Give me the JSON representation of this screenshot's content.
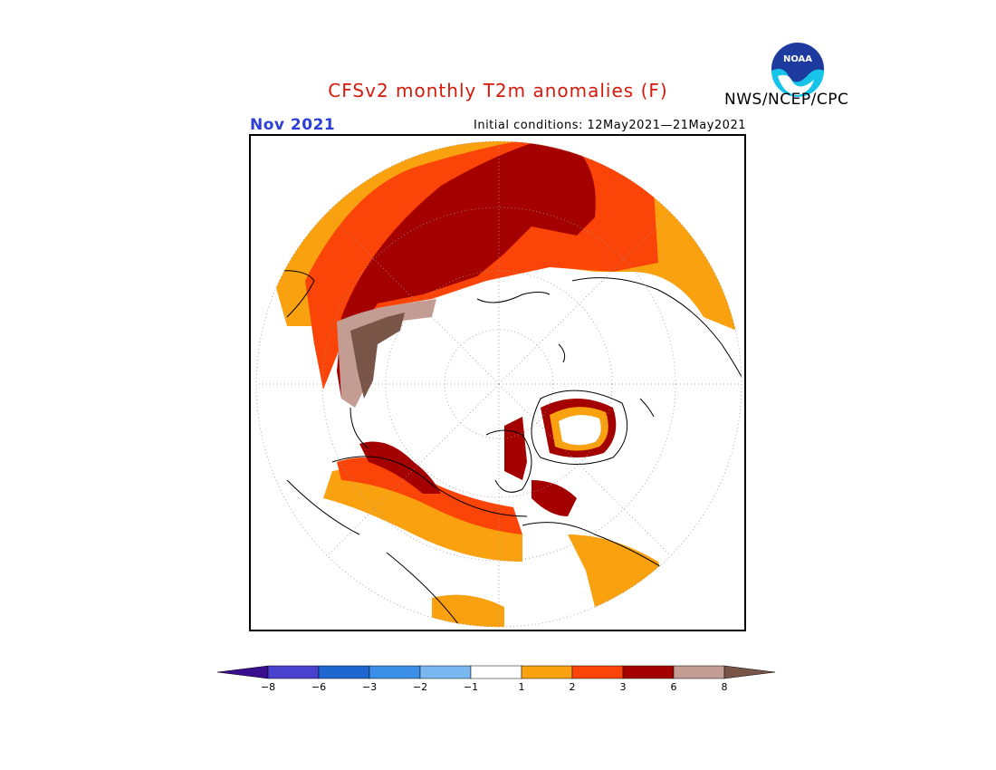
{
  "title": "CFSv2 monthly T2m anomalies (F)",
  "agency": "NWS/NCEP/CPC",
  "logo_text": "NOAA",
  "month": "Nov 2021",
  "initial_conditions": "Initial conditions: 12May2021—21May2021",
  "colors": {
    "title": "#d51a0c",
    "month": "#2d3fd6",
    "anom_1_2": "#f9a10e",
    "anom_2_3": "#fb4407",
    "anom_3_6": "#a40000",
    "anom_6_8": "#c39d93",
    "anom_gt8": "#795548"
  },
  "colorbar": {
    "bins": [
      {
        "color": "#3a0f8f",
        "label": "< -8"
      },
      {
        "color": "#4a41cf",
        "label": "-8 to -6"
      },
      {
        "color": "#1e66d0",
        "label": "-6 to -3"
      },
      {
        "color": "#3b8fe6",
        "label": "-3 to -2"
      },
      {
        "color": "#79b8f0",
        "label": "-2 to -1"
      },
      {
        "color": "#ffffff",
        "label": "-1 to 1"
      },
      {
        "color": "#f9a10e",
        "label": "1 to 2"
      },
      {
        "color": "#fb4407",
        "label": "2 to 3"
      },
      {
        "color": "#a40000",
        "label": "3 to 6"
      },
      {
        "color": "#c39d93",
        "label": "6 to 8"
      },
      {
        "color": "#795548",
        "label": "> 8"
      }
    ],
    "ticks": [
      "−8",
      "−6",
      "−3",
      "−2",
      "−1",
      "1",
      "2",
      "3",
      "6",
      "8"
    ]
  }
}
